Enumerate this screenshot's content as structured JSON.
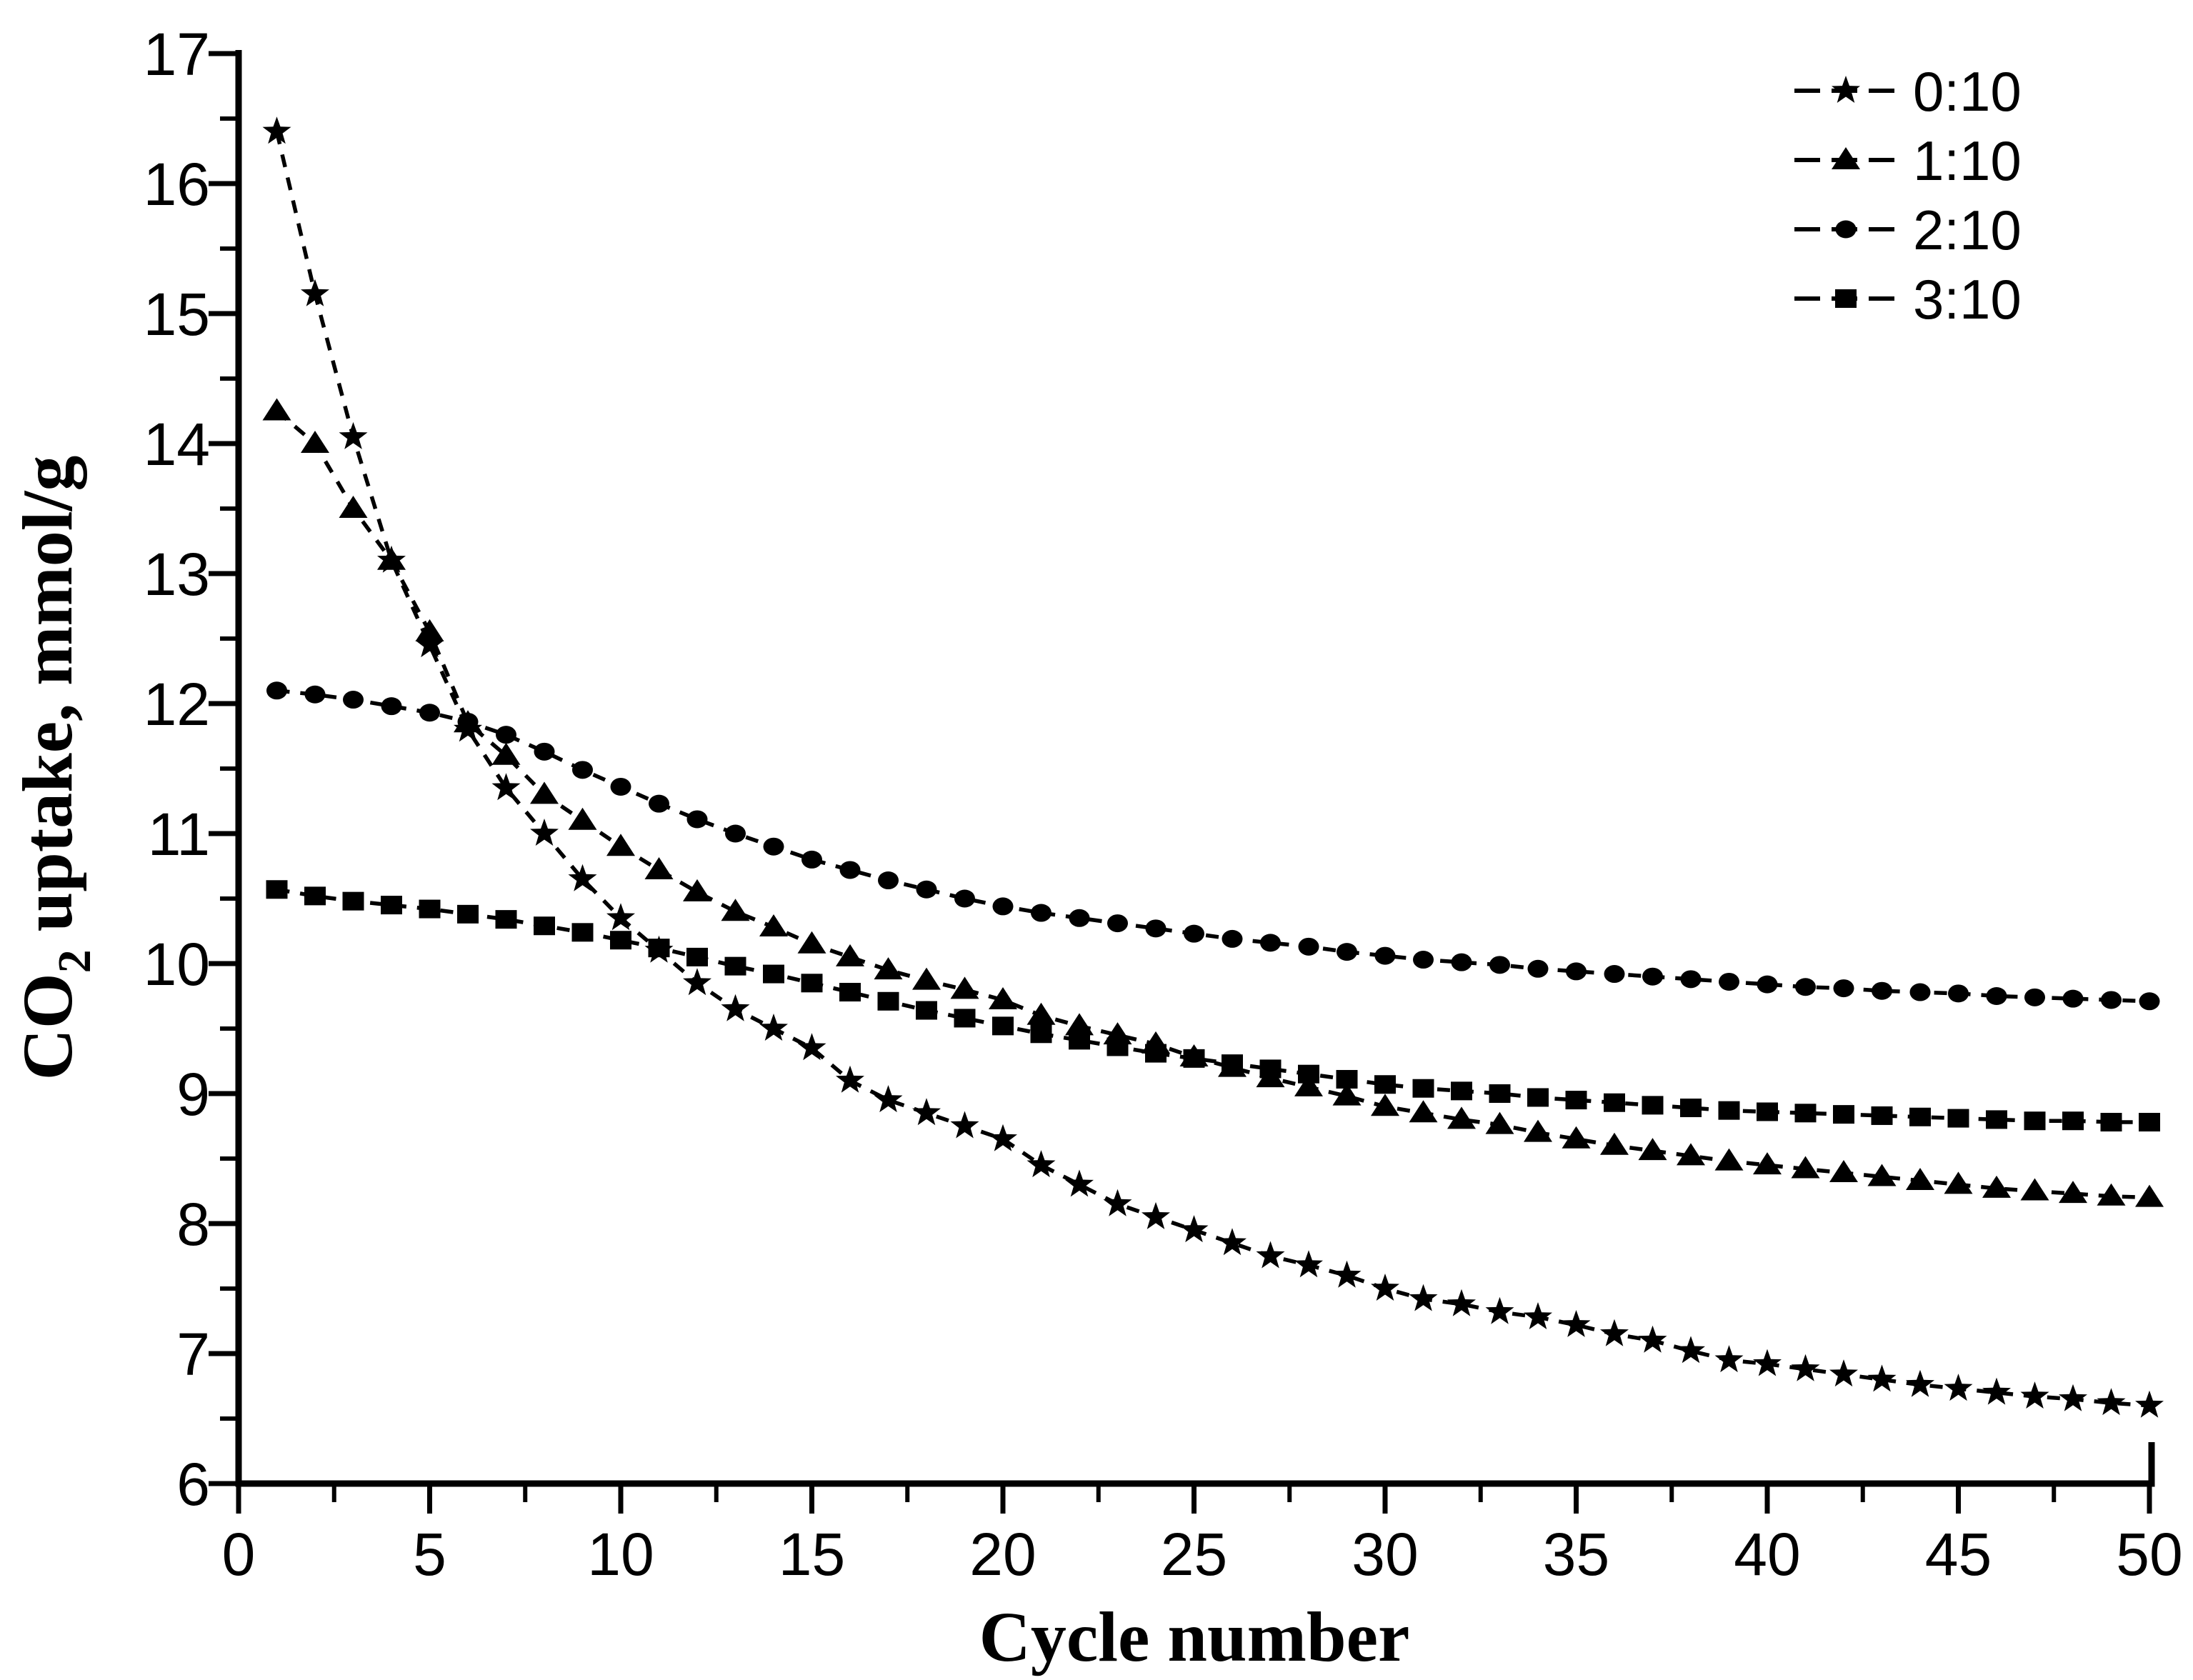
{
  "figure": {
    "background_color": "#ffffff",
    "ink_color": "#000000"
  },
  "chart_data": {
    "type": "line",
    "title": "",
    "xlabel": "Cycle number",
    "ylabel": "CO2 uptake, mmol/g",
    "ylabel_parts": {
      "pre": "CO",
      "sub": "2",
      "post": " uptake, mmol/g"
    },
    "xlim": [
      0,
      50
    ],
    "ylim": [
      6,
      17
    ],
    "x_major_ticks": [
      0,
      5,
      10,
      15,
      20,
      25,
      30,
      35,
      40,
      45,
      50
    ],
    "x_minor_step": 2.5,
    "y_major_ticks": [
      6,
      7,
      8,
      9,
      10,
      11,
      12,
      13,
      14,
      15,
      16,
      17
    ],
    "y_minor_step": 0.5,
    "grid": false,
    "legend_position": "top-right",
    "line_color": "#000000",
    "x": [
      1,
      2,
      3,
      4,
      5,
      6,
      7,
      8,
      9,
      10,
      11,
      12,
      13,
      14,
      15,
      16,
      17,
      18,
      19,
      20,
      21,
      22,
      23,
      24,
      25,
      26,
      27,
      28,
      29,
      30,
      31,
      32,
      33,
      34,
      35,
      36,
      37,
      38,
      39,
      40,
      41,
      42,
      43,
      44,
      45,
      46,
      47,
      48,
      49,
      50
    ],
    "series": [
      {
        "name": "0:10",
        "marker": "star",
        "values": [
          16.4,
          15.15,
          14.05,
          13.1,
          12.45,
          11.8,
          11.35,
          11.0,
          10.65,
          10.35,
          10.1,
          9.85,
          9.65,
          9.5,
          9.35,
          9.1,
          8.95,
          8.85,
          8.75,
          8.65,
          8.45,
          8.3,
          8.15,
          8.05,
          7.95,
          7.85,
          7.75,
          7.68,
          7.6,
          7.5,
          7.42,
          7.38,
          7.32,
          7.28,
          7.22,
          7.15,
          7.1,
          7.02,
          6.95,
          6.92,
          6.88,
          6.84,
          6.8,
          6.76,
          6.73,
          6.7,
          6.67,
          6.65,
          6.62,
          6.6
        ]
      },
      {
        "name": "1:10",
        "marker": "triangle",
        "values": [
          14.25,
          14.0,
          13.5,
          13.1,
          12.55,
          11.85,
          11.6,
          11.3,
          11.1,
          10.9,
          10.72,
          10.55,
          10.4,
          10.28,
          10.15,
          10.05,
          9.95,
          9.87,
          9.8,
          9.72,
          9.6,
          9.52,
          9.45,
          9.38,
          9.28,
          9.2,
          9.12,
          9.05,
          8.98,
          8.9,
          8.85,
          8.8,
          8.76,
          8.7,
          8.65,
          8.6,
          8.56,
          8.52,
          8.48,
          8.45,
          8.42,
          8.39,
          8.36,
          8.33,
          8.3,
          8.27,
          8.25,
          8.23,
          8.21,
          8.2
        ]
      },
      {
        "name": "2:10",
        "marker": "circle",
        "values": [
          12.1,
          12.07,
          12.03,
          11.98,
          11.93,
          11.86,
          11.76,
          11.63,
          11.49,
          11.36,
          11.23,
          11.11,
          11.0,
          10.9,
          10.8,
          10.72,
          10.64,
          10.57,
          10.5,
          10.44,
          10.39,
          10.35,
          10.31,
          10.27,
          10.23,
          10.19,
          10.16,
          10.13,
          10.09,
          10.06,
          10.03,
          10.01,
          9.99,
          9.96,
          9.94,
          9.92,
          9.9,
          9.88,
          9.86,
          9.84,
          9.82,
          9.81,
          9.79,
          9.78,
          9.77,
          9.75,
          9.74,
          9.73,
          9.72,
          9.71
        ]
      },
      {
        "name": "3:10",
        "marker": "square",
        "values": [
          10.57,
          10.52,
          10.48,
          10.45,
          10.42,
          10.38,
          10.34,
          10.29,
          10.24,
          10.18,
          10.12,
          10.05,
          9.98,
          9.92,
          9.85,
          9.78,
          9.71,
          9.64,
          9.58,
          9.52,
          9.46,
          9.41,
          9.36,
          9.31,
          9.27,
          9.23,
          9.19,
          9.15,
          9.11,
          9.07,
          9.04,
          9.02,
          9.0,
          8.97,
          8.95,
          8.93,
          8.91,
          8.89,
          8.87,
          8.86,
          8.85,
          8.84,
          8.83,
          8.82,
          8.81,
          8.8,
          8.79,
          8.79,
          8.78,
          8.78
        ]
      }
    ]
  },
  "legend": {
    "entries": [
      {
        "label": "0:10",
        "marker": "star"
      },
      {
        "label": "1:10",
        "marker": "triangle"
      },
      {
        "label": "2:10",
        "marker": "circle"
      },
      {
        "label": "3:10",
        "marker": "square"
      }
    ]
  }
}
